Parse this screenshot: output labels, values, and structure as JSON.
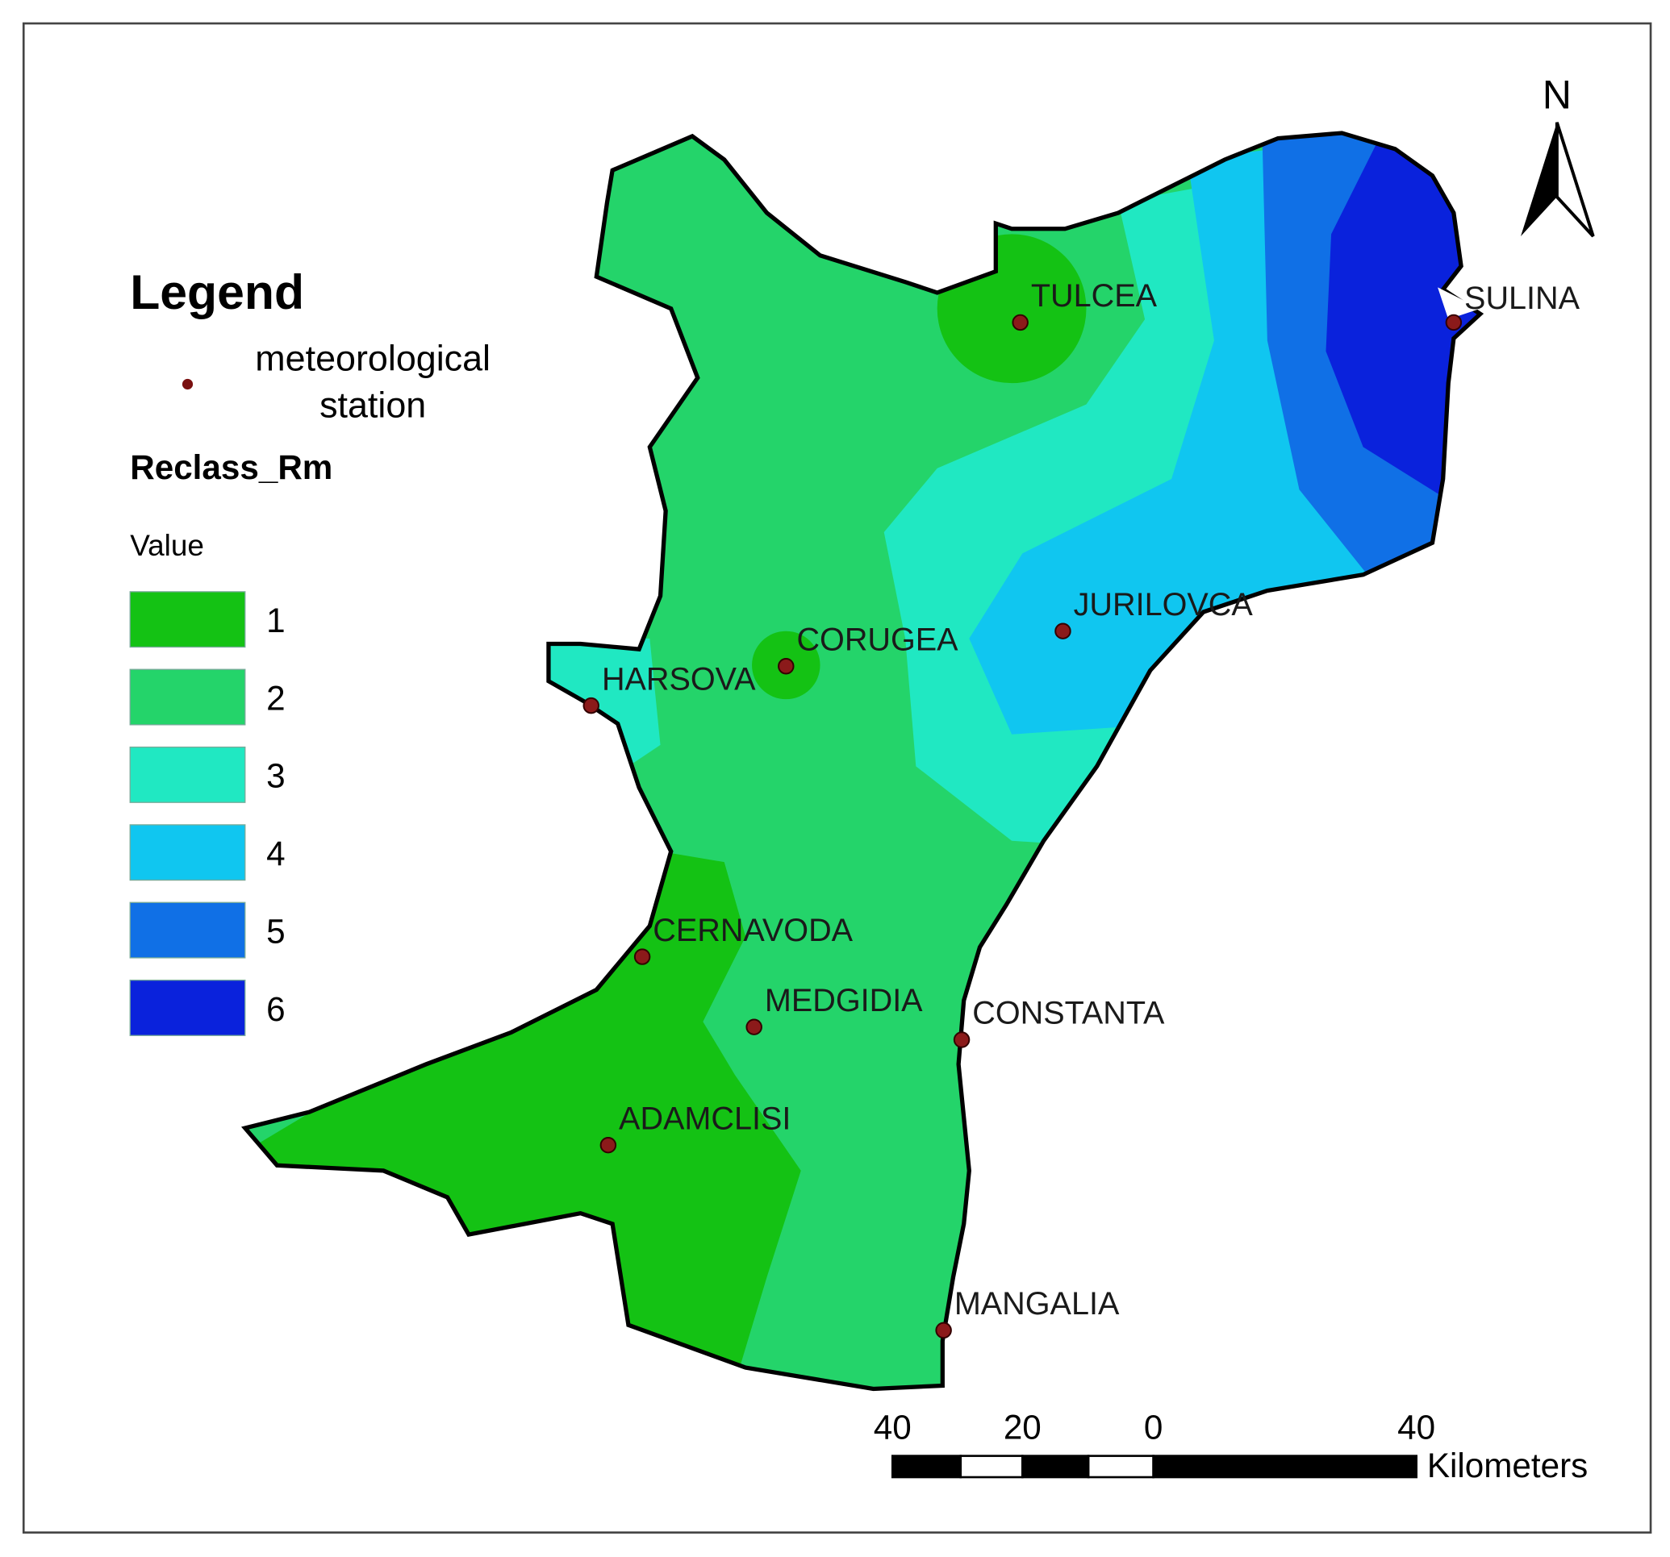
{
  "legend": {
    "title": "Legend",
    "station_label": [
      "meteorological",
      "station"
    ],
    "layer_name": "Reclass_Rm",
    "field": "Value",
    "classes": [
      {
        "label": 1,
        "color": "#14c214"
      },
      {
        "label": 2,
        "color": "#24d46a"
      },
      {
        "label": 3,
        "color": "#20e8c2"
      },
      {
        "label": 4,
        "color": "#10c6f0"
      },
      {
        "label": 5,
        "color": "#1070e6"
      },
      {
        "label": 6,
        "color": "#0a22dc"
      }
    ]
  },
  "stations": [
    "TULCEA",
    "SULINA",
    "CORUGEA",
    "HARSOVA",
    "JURILOVCA",
    "CERNAVODA",
    "MEDGIDIA",
    "CONSTANTA",
    "ADAMCLISI",
    "MANGALIA"
  ],
  "station_color": "#8b1a1a",
  "north_arrow": "N",
  "scale_bar": {
    "labels": [
      40,
      20,
      0,
      40
    ],
    "unit": "Kilometers"
  }
}
